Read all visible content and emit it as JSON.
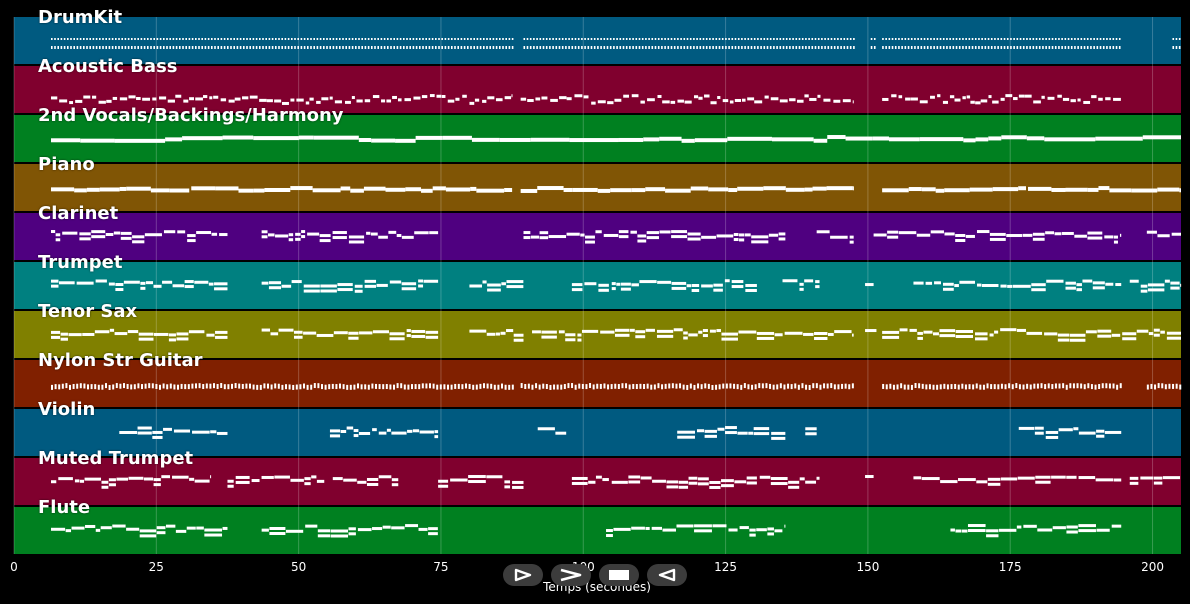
{
  "tracks": [
    {
      "name": "DrumKit",
      "color": "#005a80",
      "kind": "drum"
    },
    {
      "name": "Acoustic Bass",
      "color": "#80002e",
      "kind": "scatter"
    },
    {
      "name": "2nd Vocals/Backings/Harmony",
      "color": "#008020",
      "kind": "long"
    },
    {
      "name": "Piano",
      "color": "#805505",
      "kind": "piano"
    },
    {
      "name": "Clarinet",
      "color": "#4f0080",
      "kind": "phrase"
    },
    {
      "name": "Trumpet",
      "color": "#008080",
      "kind": "phrase"
    },
    {
      "name": "Tenor Sax",
      "color": "#808000",
      "kind": "phrase"
    },
    {
      "name": "Nylon Str Guitar",
      "color": "#802000",
      "kind": "strum"
    },
    {
      "name": "Violin",
      "color": "#005a80",
      "kind": "phrase"
    },
    {
      "name": "Muted Trumpet",
      "color": "#80002e",
      "kind": "phrase"
    },
    {
      "name": "Flute",
      "color": "#008020",
      "kind": "phrase"
    }
  ],
  "axis": {
    "label": "Temps (secondes)",
    "ticks": [
      "0",
      "25",
      "50",
      "75",
      "100",
      "125",
      "150",
      "175",
      "200"
    ],
    "tick_values": [
      0,
      25,
      50,
      75,
      100,
      125,
      150,
      175,
      200
    ],
    "range": [
      0,
      205
    ]
  },
  "transport": {
    "buttons": [
      {
        "name": "play",
        "icon": "play-outline-icon"
      },
      {
        "name": "forward",
        "icon": "chevron-right-icon"
      },
      {
        "name": "stop",
        "icon": "stop-icon"
      },
      {
        "name": "rewind",
        "icon": "triangle-left-icon"
      }
    ]
  },
  "note_segments": [
    {
      "track": 0,
      "ranges": [
        [
          6.5,
          87.5
        ],
        [
          89.5,
          147.5
        ],
        [
          150.5,
          151.5
        ],
        [
          152.5,
          194.5
        ],
        [
          203.5,
          205
        ]
      ]
    },
    {
      "track": 1,
      "ranges": [
        [
          6.5,
          87.5
        ],
        [
          89,
          147.5
        ],
        [
          152.5,
          194.5
        ]
      ]
    },
    {
      "track": 2,
      "ranges": [
        [
          6.5,
          205
        ]
      ]
    },
    {
      "track": 3,
      "ranges": [
        [
          6.5,
          87.5
        ],
        [
          89,
          147.5
        ],
        [
          152.5,
          205
        ]
      ]
    },
    {
      "track": 4,
      "ranges": [
        [
          6.5,
          37.5
        ],
        [
          43.5,
          74.5
        ],
        [
          89.5,
          135.5
        ],
        [
          141,
          147.5
        ],
        [
          151,
          194.5
        ],
        [
          199,
          205
        ]
      ]
    },
    {
      "track": 5,
      "ranges": [
        [
          6.5,
          37.5
        ],
        [
          43.5,
          74.5
        ],
        [
          80,
          89.5
        ],
        [
          98,
          104.5
        ],
        [
          105,
          130.5
        ],
        [
          135,
          141.5
        ],
        [
          149.5,
          151
        ],
        [
          158,
          194.5
        ],
        [
          196,
          205
        ]
      ]
    },
    {
      "track": 6,
      "ranges": [
        [
          6.5,
          37.5
        ],
        [
          43.5,
          74.5
        ],
        [
          80,
          89.5
        ],
        [
          91,
          147.5
        ],
        [
          149.5,
          151.5
        ],
        [
          152.5,
          205
        ]
      ]
    },
    {
      "track": 7,
      "ranges": [
        [
          6.5,
          87.5
        ],
        [
          89,
          147.5
        ],
        [
          152.5,
          194.5
        ],
        [
          199,
          205
        ]
      ]
    },
    {
      "track": 8,
      "ranges": [
        [
          18.5,
          37.5
        ],
        [
          55.5,
          74.5
        ],
        [
          92,
          97
        ],
        [
          116.5,
          135.5
        ],
        [
          139,
          141
        ],
        [
          176.5,
          194.5
        ]
      ]
    },
    {
      "track": 9,
      "ranges": [
        [
          6.5,
          34.5
        ],
        [
          37.5,
          54.5
        ],
        [
          56,
          67.5
        ],
        [
          74.5,
          89.5
        ],
        [
          98,
          104.5
        ],
        [
          105,
          130.5
        ],
        [
          131,
          141.5
        ],
        [
          149.5,
          151
        ],
        [
          158,
          194.5
        ],
        [
          196,
          205
        ]
      ]
    },
    {
      "track": 10,
      "ranges": [
        [
          6.5,
          37.5
        ],
        [
          43.5,
          74.5
        ],
        [
          104,
          135.5
        ],
        [
          164.5,
          194.5
        ]
      ]
    }
  ]
}
